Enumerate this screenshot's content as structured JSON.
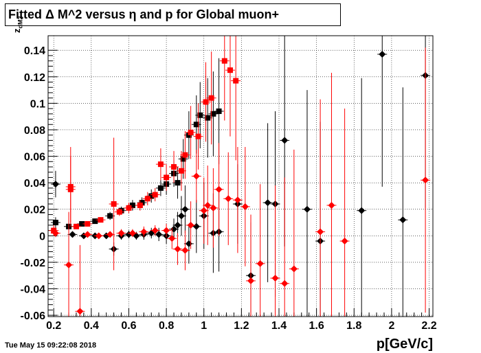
{
  "title": "Fitted Δ M^2 versus η and p for Global muon+",
  "timestamp": "Tue May 15 09:22:08 2018",
  "chart_data": {
    "type": "scatter",
    "title": "Fitted Δ M^2 versus η and p for Global muon+",
    "xlabel": "p[GeV/c]",
    "ylabel": "z_{dM2}",
    "xlim": [
      0.17,
      2.22
    ],
    "ylim": [
      -0.061,
      0.151
    ],
    "xticks": [
      0.2,
      0.4,
      0.6,
      0.8,
      1,
      1.2,
      1.4,
      1.6,
      1.8,
      2,
      2.2
    ],
    "xtick_labels": [
      "0.2",
      "0.4",
      "0.6",
      "0.8",
      "1",
      "1.2",
      "1.4",
      "1.6",
      "1.8",
      "2",
      "2.2"
    ],
    "yticks": [
      -0.06,
      -0.04,
      -0.02,
      0,
      0.02,
      0.04,
      0.06,
      0.08,
      0.1,
      0.12,
      0.14
    ],
    "ytick_labels": [
      "-0.06",
      "-0.04",
      "-0.02",
      "0",
      "0.02",
      "0.04",
      "0.06",
      "0.08",
      "0.1",
      "0.12",
      "0.14"
    ],
    "grid": true,
    "series": [
      {
        "marker": "square",
        "color": "#000000",
        "points": [
          {
            "x": 0.21,
            "y": 0.01,
            "e": 0.004
          },
          {
            "x": 0.28,
            "y": 0.007,
            "e": 0.002
          },
          {
            "x": 0.35,
            "y": 0.009,
            "e": 0.002
          },
          {
            "x": 0.42,
            "y": 0.011,
            "e": 0.002
          },
          {
            "x": 0.5,
            "y": 0.015,
            "e": 0.003
          },
          {
            "x": 0.56,
            "y": 0.019,
            "e": 0.003
          },
          {
            "x": 0.62,
            "y": 0.023,
            "e": 0.004
          },
          {
            "x": 0.67,
            "y": 0.025,
            "e": 0.004
          },
          {
            "x": 0.72,
            "y": 0.03,
            "e": 0.005
          },
          {
            "x": 0.77,
            "y": 0.036,
            "e": 0.006
          },
          {
            "x": 0.8,
            "y": 0.039,
            "e": 0.008
          },
          {
            "x": 0.84,
            "y": 0.047,
            "e": 0.01
          },
          {
            "x": 0.86,
            "y": 0.04,
            "e": 0.012
          },
          {
            "x": 0.89,
            "y": 0.058,
            "e": 0.015
          },
          {
            "x": 0.92,
            "y": 0.076,
            "e": 0.018
          },
          {
            "x": 0.96,
            "y": 0.084,
            "e": 0.022
          },
          {
            "x": 0.98,
            "y": 0.091,
            "e": 0.025
          },
          {
            "x": 1.02,
            "y": 0.089,
            "e": 0.03
          },
          {
            "x": 1.05,
            "y": 0.092,
            "e": 0.032
          },
          {
            "x": 1.08,
            "y": 0.094,
            "e": 0.04
          }
        ]
      },
      {
        "marker": "diamond",
        "color": "#000000",
        "points": [
          {
            "x": 0.21,
            "y": 0.039,
            "e": 0.01
          },
          {
            "x": 0.3,
            "y": 0.001,
            "e": 0.002
          },
          {
            "x": 0.36,
            "y": 0.0,
            "e": 0.002
          },
          {
            "x": 0.42,
            "y": 0.0,
            "e": 0.002
          },
          {
            "x": 0.48,
            "y": 0.0,
            "e": 0.002
          },
          {
            "x": 0.52,
            "y": -0.01,
            "e": 0.005
          },
          {
            "x": 0.56,
            "y": 0.0,
            "e": 0.003
          },
          {
            "x": 0.6,
            "y": 0.001,
            "e": 0.003
          },
          {
            "x": 0.64,
            "y": 0.0,
            "e": 0.003
          },
          {
            "x": 0.68,
            "y": 0.001,
            "e": 0.004
          },
          {
            "x": 0.72,
            "y": 0.002,
            "e": 0.004
          },
          {
            "x": 0.76,
            "y": 0.001,
            "e": 0.005
          },
          {
            "x": 0.8,
            "y": 0.0,
            "e": 0.006
          },
          {
            "x": 0.84,
            "y": 0.005,
            "e": 0.008
          },
          {
            "x": 0.86,
            "y": 0.008,
            "e": 0.01
          },
          {
            "x": 0.88,
            "y": 0.015,
            "e": 0.015
          },
          {
            "x": 0.9,
            "y": 0.02,
            "e": 0.018
          },
          {
            "x": 0.92,
            "y": -0.006,
            "e": 0.015
          },
          {
            "x": 0.96,
            "y": 0.007,
            "e": 0.02
          },
          {
            "x": 1.0,
            "y": 0.015,
            "e": 0.025
          },
          {
            "x": 1.05,
            "y": 0.002,
            "e": 0.03
          },
          {
            "x": 1.08,
            "y": 0.003,
            "e": 0.03
          },
          {
            "x": 1.18,
            "y": 0.024,
            "e": 0.03
          },
          {
            "x": 1.25,
            "y": -0.03,
            "e": 0.04
          },
          {
            "x": 1.34,
            "y": 0.025,
            "e": 0.06
          },
          {
            "x": 1.38,
            "y": 0.024,
            "e": 0.07
          },
          {
            "x": 1.43,
            "y": 0.072,
            "e": 0.08
          },
          {
            "x": 1.55,
            "y": 0.02,
            "e": 0.09
          },
          {
            "x": 1.62,
            "y": -0.004,
            "e": 0.09
          },
          {
            "x": 1.84,
            "y": 0.019,
            "e": 0.1
          },
          {
            "x": 1.95,
            "y": 0.137,
            "e": 0.1
          },
          {
            "x": 2.06,
            "y": 0.012,
            "e": 0.1
          },
          {
            "x": 2.18,
            "y": 0.121,
            "e": 0.1
          }
        ]
      },
      {
        "marker": "square",
        "color": "#ff0000",
        "points": [
          {
            "x": 0.2,
            "y": 0.004,
            "e": 0.004
          },
          {
            "x": 0.29,
            "y": 0.037,
            "e": 0.03
          },
          {
            "x": 0.29,
            "y": 0.035,
            "e": 0.025
          },
          {
            "x": 0.32,
            "y": 0.007,
            "e": 0.002
          },
          {
            "x": 0.38,
            "y": 0.009,
            "e": 0.002
          },
          {
            "x": 0.45,
            "y": 0.012,
            "e": 0.002
          },
          {
            "x": 0.52,
            "y": 0.024,
            "e": 0.05
          },
          {
            "x": 0.55,
            "y": 0.018,
            "e": 0.003
          },
          {
            "x": 0.6,
            "y": 0.021,
            "e": 0.004
          },
          {
            "x": 0.66,
            "y": 0.023,
            "e": 0.004
          },
          {
            "x": 0.7,
            "y": 0.028,
            "e": 0.005
          },
          {
            "x": 0.74,
            "y": 0.031,
            "e": 0.005
          },
          {
            "x": 0.77,
            "y": 0.054,
            "e": 0.012
          },
          {
            "x": 0.8,
            "y": 0.044,
            "e": 0.01
          },
          {
            "x": 0.84,
            "y": 0.052,
            "e": 0.012
          },
          {
            "x": 0.88,
            "y": 0.049,
            "e": 0.015
          },
          {
            "x": 0.9,
            "y": 0.061,
            "e": 0.018
          },
          {
            "x": 0.93,
            "y": 0.078,
            "e": 0.02
          },
          {
            "x": 0.97,
            "y": 0.075,
            "e": 0.025
          },
          {
            "x": 1.01,
            "y": 0.101,
            "e": 0.03
          },
          {
            "x": 1.04,
            "y": 0.104,
            "e": 0.035
          },
          {
            "x": 1.11,
            "y": 0.132,
            "e": 0.045
          },
          {
            "x": 1.14,
            "y": 0.125,
            "e": 0.05
          },
          {
            "x": 1.17,
            "y": 0.117,
            "e": 0.06
          }
        ]
      },
      {
        "marker": "diamond",
        "color": "#ff0000",
        "points": [
          {
            "x": 0.21,
            "y": 0.002,
            "e": 0.003
          },
          {
            "x": 0.28,
            "y": -0.022,
            "e": 0.04
          },
          {
            "x": 0.34,
            "y": -0.057,
            "e": 0.05
          },
          {
            "x": 0.38,
            "y": 0.001,
            "e": 0.002
          },
          {
            "x": 0.44,
            "y": 0.0,
            "e": 0.002
          },
          {
            "x": 0.5,
            "y": 0.001,
            "e": 0.002
          },
          {
            "x": 0.56,
            "y": 0.002,
            "e": 0.003
          },
          {
            "x": 0.62,
            "y": 0.002,
            "e": 0.003
          },
          {
            "x": 0.68,
            "y": 0.003,
            "e": 0.004
          },
          {
            "x": 0.74,
            "y": 0.004,
            "e": 0.004
          },
          {
            "x": 0.8,
            "y": 0.004,
            "e": 0.005
          },
          {
            "x": 0.83,
            "y": -0.002,
            "e": 0.008
          },
          {
            "x": 0.86,
            "y": -0.01,
            "e": 0.012
          },
          {
            "x": 0.9,
            "y": -0.011,
            "e": 0.015
          },
          {
            "x": 0.93,
            "y": 0.008,
            "e": 0.018
          },
          {
            "x": 0.96,
            "y": 0.045,
            "e": 0.02
          },
          {
            "x": 1.0,
            "y": 0.019,
            "e": 0.025
          },
          {
            "x": 1.02,
            "y": 0.023,
            "e": 0.03
          },
          {
            "x": 1.05,
            "y": 0.021,
            "e": 0.03
          },
          {
            "x": 1.08,
            "y": 0.035,
            "e": 0.035
          },
          {
            "x": 1.13,
            "y": 0.028,
            "e": 0.035
          },
          {
            "x": 1.18,
            "y": 0.027,
            "e": 0.04
          },
          {
            "x": 1.22,
            "y": 0.022,
            "e": 0.045
          },
          {
            "x": 1.25,
            "y": -0.034,
            "e": 0.05
          },
          {
            "x": 1.3,
            "y": -0.021,
            "e": 0.06
          },
          {
            "x": 1.38,
            "y": -0.032,
            "e": 0.07
          },
          {
            "x": 1.43,
            "y": -0.036,
            "e": 0.08
          },
          {
            "x": 1.48,
            "y": -0.025,
            "e": 0.09
          },
          {
            "x": 1.62,
            "y": 0.003,
            "e": 0.1
          },
          {
            "x": 1.68,
            "y": 0.023,
            "e": 0.1
          },
          {
            "x": 1.75,
            "y": -0.004,
            "e": 0.1
          },
          {
            "x": 2.18,
            "y": 0.042,
            "e": 0.1
          }
        ]
      }
    ]
  }
}
